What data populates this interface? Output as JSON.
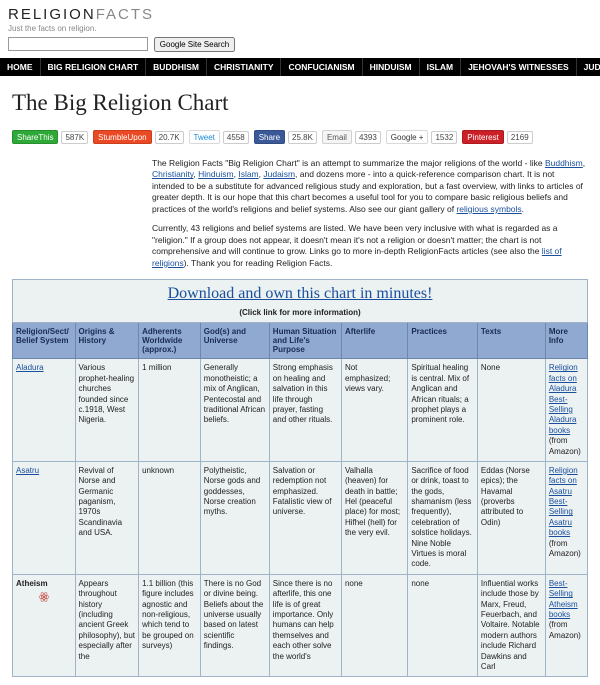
{
  "colors": {
    "link": "#1a4f9c",
    "nav_bg": "#000000",
    "th_bg": "#8fa9d0",
    "td_bg": "#ecf1f2",
    "border": "#9fb5c7"
  },
  "header": {
    "logo_a": "RELIGION",
    "logo_b": "FACTS",
    "tagline": "Just the facts on religion.",
    "search_placeholder": "",
    "search_btn": "Google Site Search"
  },
  "nav": [
    "HOME",
    "BIG RELIGION CHART",
    "BUDDHISM",
    "CHRISTIANITY",
    "CONFUCIANISM",
    "HINDUISM",
    "ISLAM",
    "JEHOVAH'S WITNESSES",
    "JUDAI"
  ],
  "title": "The Big Religion Chart",
  "share": [
    {
      "label": "ShareThis",
      "count": "587K",
      "bg": "#2ea836"
    },
    {
      "label": "StumbleUpon",
      "count": "20.7K",
      "bg": "#eb4924"
    },
    {
      "label": "Tweet",
      "count": "4558",
      "bg": "#ffffff",
      "fg": "#1a8cd8"
    },
    {
      "label": "Share",
      "count": "25.8K",
      "bg": "#3b5998"
    },
    {
      "label": "Email",
      "count": "4393",
      "bg": "#f5f5f5",
      "fg": "#555"
    },
    {
      "label": "Google +",
      "count": "1532",
      "bg": "#ffffff",
      "fg": "#333"
    },
    {
      "label": "Pinterest",
      "count": "2169",
      "bg": "#cb2027"
    }
  ],
  "intro": {
    "p1a": "The Religion Facts \"Big Religion Chart\" is an attempt to summarize the major religions of the world - like ",
    "links": [
      "Buddhism",
      "Christianity",
      "Hinduism",
      "Islam",
      "Judaism"
    ],
    "p1b": ", and dozens more - into a quick-reference comparison chart. It is not intended to be a substitute for advanced religious study and exploration, but a fast overview, with links to articles of greater depth. It is our hope that this chart becomes a useful tool for you to compare basic religious beliefs and practices of the world's religions and belief systems. Also see our giant gallery of ",
    "p1c": "religious symbols",
    "p1d": ".",
    "p2a": "Currently, 43 religions and belief systems are listed. We have been very inclusive with what is regarded as a \"religion.\" If a group does not appear, it doesn't mean it's not a religion or doesn't matter; the chart is not comprehensive and will continue to grow. Links go to more in-depth ReligionFacts articles (see also the ",
    "p2b": "list of religions",
    "p2c": "). Thank you for reading Religion Facts."
  },
  "download": {
    "link": "Download and own this chart in minutes!",
    "sub": "(Click link for more information)"
  },
  "chart": {
    "headers": [
      "Religion/Sect/ Belief System",
      "Origins & History",
      "Adherents Worldwide (approx.)",
      "God(s) and Universe",
      "Human Situation and Life's Purpose",
      "Afterlife",
      "Practices",
      "Texts",
      "More Info"
    ],
    "rows": [
      {
        "name": "Aladura",
        "name_link": true,
        "origins": "Various prophet-healing churches founded since c.1918, West Nigeria.",
        "adherents": "1 million",
        "gods": "Generally monotheistic; a mix of Anglican, Pentecostal and traditional African beliefs.",
        "human": "Strong emphasis on healing and salvation in this life through prayer, fasting and other rituals.",
        "afterlife": "Not emphasized; views vary.",
        "practices": "Spiritual healing is central. Mix of Anglican and African rituals; a prophet plays a prominent role.",
        "texts": "None",
        "more": [
          [
            "Religion facts on Aladura",
            true
          ],
          [
            "Best-Selling Aladura books",
            true
          ],
          [
            "(from Amazon)",
            false
          ]
        ]
      },
      {
        "name": "Asatru",
        "name_link": true,
        "origins": "Revival of Norse and Germanic paganism, 1970s Scandinavia and USA.",
        "adherents": "unknown",
        "gods": "Polytheistic, Norse gods and goddesses, Norse creation myths.",
        "human": "Salvation or redemption not emphasized. Fatalistic view of universe.",
        "afterlife": "Valhalla (heaven) for death in battle; Hel (peaceful place) for most; Hifhel (hell) for the very evil.",
        "practices": "Sacrifice of food or drink, toast to the gods, shamanism (less frequently), celebration of solstice holidays. Nine Noble Virtues is moral code.",
        "texts": "Eddas (Norse epics); the Havamal (proverbs attributed to Odin)",
        "more": [
          [
            "Religion facts on Asatru",
            true
          ],
          [
            "Best-Selling Asatru books",
            true
          ],
          [
            "(from Amazon)",
            false
          ]
        ]
      },
      {
        "name": "Atheism",
        "name_link": false,
        "icon": true,
        "origins": "Appears throughout history (including ancient Greek philosophy), but especially after the",
        "adherents": "1.1 billion (this figure includes agnostic and non-religious, which tend to be grouped on surveys)",
        "gods": "There is no God or divine being. Beliefs about the universe usually based on latest scientific findings.",
        "human": "Since there is no afterlife, this one life is of great importance. Only humans can help themselves and each other solve the world's",
        "afterlife": "none",
        "practices": "none",
        "texts": "Influential works include those by Marx, Freud, Feuerbach, and Voltaire. Notable modern authors include Richard Dawkins and Carl",
        "more": [
          [
            "Best-Selling Atheism books",
            true
          ],
          [
            "(from Amazon)",
            false
          ]
        ]
      }
    ]
  }
}
